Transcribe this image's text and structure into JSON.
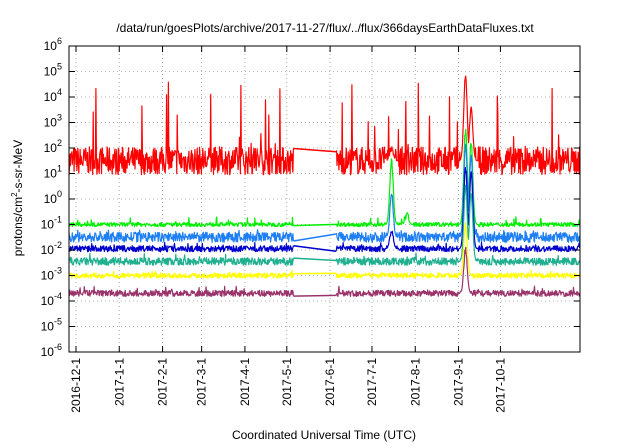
{
  "chart_data": {
    "type": "line",
    "title": "/data/run/goesPlots/archive/2017-11-27/flux/../flux/366daysEarthDataFluxes.txt",
    "xlabel": "Coordinated Universal Time (UTC)",
    "ylabel_prefix": "protons/cm",
    "ylabel_sup": "2",
    "ylabel_suffix": "-s-sr-MeV",
    "y_scale": "log",
    "ylim_exp": [
      -6,
      6
    ],
    "y_ticks": [
      {
        "mant": "10",
        "exp": "-6"
      },
      {
        "mant": "10",
        "exp": "-5"
      },
      {
        "mant": "10",
        "exp": "-4"
      },
      {
        "mant": "10",
        "exp": "-3"
      },
      {
        "mant": "10",
        "exp": "-2"
      },
      {
        "mant": "10",
        "exp": "-1"
      },
      {
        "mant": "10",
        "exp": "0"
      },
      {
        "mant": "10",
        "exp": "1"
      },
      {
        "mant": "10",
        "exp": "2"
      },
      {
        "mant": "10",
        "exp": "3"
      },
      {
        "mant": "10",
        "exp": "4"
      },
      {
        "mant": "10",
        "exp": "5"
      },
      {
        "mant": "10",
        "exp": "6"
      }
    ],
    "x_range": [
      "2016-11-26",
      "2017-11-27"
    ],
    "x_ticks": [
      "2016-12-1",
      "2017-1-1",
      "2017-2-1",
      "2017-3-1",
      "2017-4-1",
      "2017-5-1",
      "2017-6-1",
      "2017-7-1",
      "2017-8-1",
      "2017-9-1",
      "2017-10-1"
    ],
    "grid": true,
    "data_gap": [
      "2017-5-6",
      "2017-6-5"
    ],
    "series": [
      {
        "color": "#ff0000",
        "baseline_log": 1.5,
        "noise_log": 0.55,
        "spike_max_log": 4.6,
        "events": [
          {
            "date": "2017-7-15",
            "peak_log": 2.0
          },
          {
            "date": "2017-9-6",
            "peak_log": 4.8
          },
          {
            "date": "2017-9-10",
            "peak_log": 3.5
          }
        ]
      },
      {
        "color": "#00ee00",
        "baseline_log": -1.0,
        "noise_log": 0.08,
        "spike_max_log": -0.7,
        "events": [
          {
            "date": "2017-7-15",
            "peak_log": 1.5
          },
          {
            "date": "2017-7-26",
            "peak_log": -0.6
          },
          {
            "date": "2017-9-6",
            "peak_log": 2.7
          },
          {
            "date": "2017-9-10",
            "peak_log": 2.2
          }
        ]
      },
      {
        "color": "#1e7ff5",
        "baseline_log": -1.5,
        "noise_log": 0.2,
        "spike_max_log": -1.2,
        "events": [
          {
            "date": "2017-7-15",
            "peak_log": 0.2
          },
          {
            "date": "2017-9-6",
            "peak_log": 2.1
          },
          {
            "date": "2017-9-10",
            "peak_log": 1.7
          }
        ]
      },
      {
        "color": "#0000cc",
        "baseline_log": -1.95,
        "noise_log": 0.12,
        "spike_max_log": -1.7,
        "events": [
          {
            "date": "2017-7-15",
            "peak_log": -1.2
          },
          {
            "date": "2017-9-6",
            "peak_log": 1.2
          },
          {
            "date": "2017-9-10",
            "peak_log": 1.0
          }
        ]
      },
      {
        "color": "#20b090",
        "baseline_log": -2.45,
        "noise_log": 0.15,
        "spike_max_log": -2.1,
        "events": [
          {
            "date": "2017-9-6",
            "peak_log": 0.5
          },
          {
            "date": "2017-9-10",
            "peak_log": 0.2
          }
        ]
      },
      {
        "color": "#ffff00",
        "baseline_log": -3.0,
        "noise_log": 0.1,
        "spike_max_log": -2.8,
        "events": [
          {
            "date": "2017-9-6",
            "peak_log": -1.0
          }
        ]
      },
      {
        "color": "#99336a",
        "baseline_log": -3.7,
        "noise_log": 0.12,
        "spike_max_log": -3.4,
        "events": [
          {
            "date": "2017-9-6",
            "peak_log": -2.0
          }
        ]
      }
    ]
  }
}
